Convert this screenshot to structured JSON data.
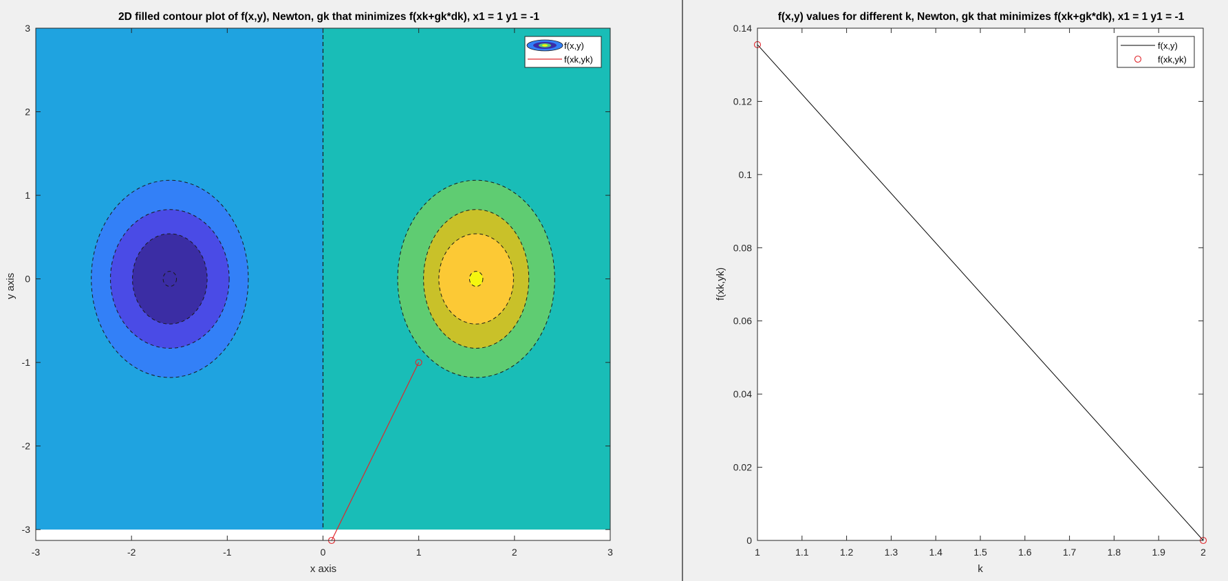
{
  "colors": {
    "figure_bg": "#f0f0f0",
    "contour_levels": [
      "#1fa3e0",
      "#19bdb7",
      "#3380f7",
      "#4a4be6",
      "#3b2da4",
      "#5fcc72",
      "#c9c129",
      "#fcc935",
      "#f5f60f"
    ],
    "iterate_line": "#e0262c",
    "fvalue_line": "#000000",
    "fvalue_marker": "#e0262c"
  },
  "chart_data": [
    {
      "type": "contourf",
      "title": "2D filled contour plot of f(x,y), Newton, gk that minimizes f(xk+gk*dk), x1 = 1 y1 = -1",
      "xlabel": "x axis",
      "ylabel": "y axis",
      "xlim": [
        -3,
        3
      ],
      "ylim": [
        -3.13,
        3
      ],
      "xticks": [
        -3,
        -2,
        -1,
        0,
        1,
        2,
        3
      ],
      "yticks": [
        -3,
        -2,
        -1,
        0,
        1,
        2,
        3
      ],
      "field_domain": {
        "x": [
          -3,
          3
        ],
        "y": [
          -3,
          3
        ]
      },
      "dashed_zero_contour_x": 0,
      "minimum": {
        "x": -1.6,
        "y": 0,
        "contour_semi_axes": [
          [
            0.82,
            1.18
          ],
          [
            0.62,
            0.83
          ],
          [
            0.39,
            0.54
          ],
          [
            0.07,
            0.09
          ]
        ]
      },
      "maximum": {
        "x": 1.6,
        "y": 0,
        "contour_semi_axes": [
          [
            0.82,
            1.18
          ],
          [
            0.55,
            0.83
          ],
          [
            0.39,
            0.54
          ],
          [
            0.07,
            0.09
          ]
        ]
      },
      "iterates": {
        "x": [
          1,
          0.09
        ],
        "y": [
          -1,
          -3.13
        ]
      },
      "legend": {
        "location": "top-right",
        "entries": [
          "f(x,y)",
          "f(xk,yk)"
        ]
      },
      "grid": false
    },
    {
      "type": "line",
      "title": "f(x,y) values for different k, Newton, gk that minimizes f(xk+gk*dk), x1 = 1 y1 = -1",
      "xlabel": "k",
      "ylabel": "f(xk,yk)",
      "xlim": [
        1,
        2
      ],
      "ylim": [
        0,
        0.14
      ],
      "xticks": [
        "1",
        "1.1",
        "1.2",
        "1.3",
        "1.4",
        "1.5",
        "1.6",
        "1.7",
        "1.8",
        "1.9",
        "2"
      ],
      "yticks": [
        "0",
        "0.02",
        "0.04",
        "0.06",
        "0.08",
        "0.1",
        "0.12",
        "0.14"
      ],
      "series": [
        {
          "name": "f(x,y)",
          "style": "line",
          "x": [
            1,
            2
          ],
          "y": [
            0.1355,
            0
          ]
        },
        {
          "name": "f(xk,yk)",
          "style": "marker",
          "x": [
            1,
            2
          ],
          "y": [
            0.1355,
            0
          ]
        }
      ],
      "legend": {
        "location": "top-right",
        "entries": [
          "f(x,y)",
          "f(xk,yk)"
        ]
      },
      "grid": false
    }
  ]
}
